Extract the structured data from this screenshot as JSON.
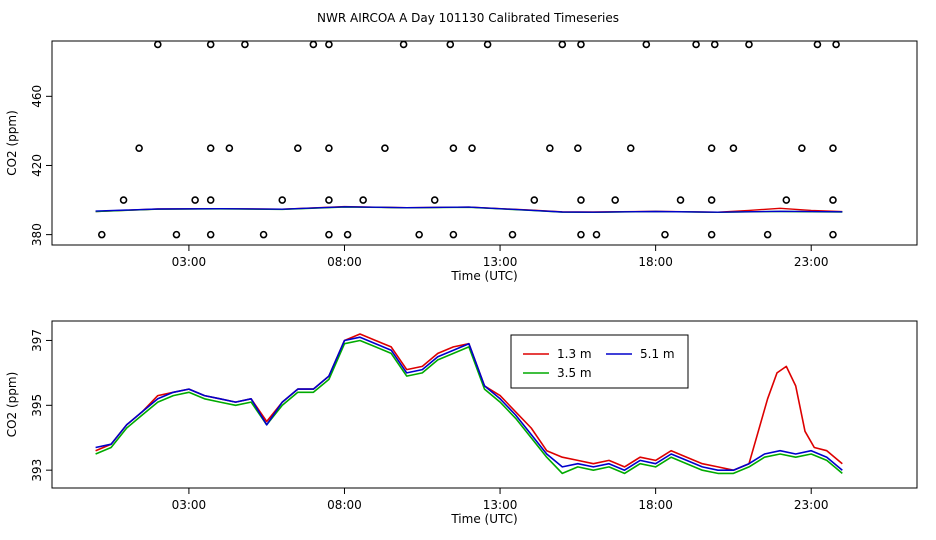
{
  "title": "NWR AIRCOA A  Day 101130  Calibrated Timeseries",
  "chart_data": [
    {
      "type": "scatter",
      "ylabel": "CO2 (ppm)",
      "xlabel": "Time (UTC)",
      "xlim": [
        -1.4,
        26.4
      ],
      "ylim": [
        374,
        492
      ],
      "x_ticks": [
        3,
        8,
        13,
        18,
        23
      ],
      "x_tick_labels": [
        "03:00",
        "08:00",
        "13:00",
        "18:00",
        "23:00"
      ],
      "y_ticks": [
        380,
        420,
        460
      ],
      "y_tick_labels": [
        "380",
        "420",
        "460"
      ],
      "lines": [
        {
          "name": "1.3 m",
          "color": "#dd0000",
          "x": [
            0,
            2,
            4,
            6,
            8,
            10,
            12,
            14,
            15,
            16,
            18,
            20,
            21,
            22,
            23,
            24
          ],
          "y": [
            393.4,
            394.8,
            395.0,
            394.7,
            396.2,
            395.6,
            395.9,
            394.2,
            393.2,
            393.1,
            393.5,
            393.0,
            394.0,
            395.2,
            394.0,
            393.3
          ]
        },
        {
          "name": "3.5 m",
          "color": "#00aa00",
          "x": [
            0,
            2,
            4,
            6,
            8,
            10,
            12,
            14,
            15,
            16,
            18,
            20,
            22,
            24
          ],
          "y": [
            393.4,
            394.7,
            394.9,
            394.6,
            396.0,
            395.5,
            395.8,
            394.0,
            393.0,
            392.9,
            393.3,
            392.9,
            393.4,
            393.1
          ]
        },
        {
          "name": "5.1 m",
          "color": "#0000cc",
          "x": [
            0,
            2,
            4,
            6,
            8,
            10,
            12,
            14,
            15,
            16,
            18,
            20,
            22,
            24
          ],
          "y": [
            393.6,
            394.8,
            395.0,
            394.7,
            396.1,
            395.6,
            395.9,
            394.1,
            393.1,
            393.0,
            393.4,
            393.0,
            393.5,
            393.2
          ]
        }
      ],
      "points": {
        "x": [
          0.2,
          0.9,
          1.4,
          2.0,
          2.6,
          3.2,
          3.7,
          3.7,
          3.7,
          3.7,
          4.3,
          4.8,
          5.4,
          6.0,
          6.5,
          7.0,
          7.5,
          7.5,
          7.5,
          7.5,
          8.1,
          8.6,
          9.3,
          9.9,
          10.4,
          10.9,
          11.4,
          11.5,
          11.5,
          12.1,
          12.6,
          13.4,
          14.1,
          14.6,
          15.0,
          15.5,
          15.6,
          15.6,
          15.6,
          16.1,
          16.7,
          17.2,
          17.7,
          18.3,
          18.8,
          19.3,
          19.8,
          19.8,
          19.8,
          19.9,
          20.5,
          21.0,
          21.6,
          22.2,
          22.7,
          23.2,
          23.7,
          23.7,
          23.7,
          23.8
        ],
        "y": [
          380,
          400,
          430,
          490,
          380,
          400,
          490,
          430,
          400,
          380,
          430,
          490,
          380,
          400,
          430,
          490,
          430,
          400,
          380,
          490,
          380,
          400,
          430,
          490,
          380,
          400,
          490,
          430,
          380,
          430,
          490,
          380,
          400,
          430,
          490,
          430,
          400,
          380,
          490,
          380,
          400,
          430,
          490,
          380,
          400,
          490,
          430,
          400,
          380,
          490,
          430,
          490,
          380,
          400,
          430,
          490,
          430,
          400,
          380,
          490
        ]
      }
    },
    {
      "type": "line",
      "ylabel": "CO2 (ppm)",
      "xlabel": "Time (UTC)",
      "xlim": [
        -1.4,
        26.4
      ],
      "ylim": [
        392.45,
        397.6
      ],
      "x_ticks": [
        3,
        8,
        13,
        18,
        23
      ],
      "x_tick_labels": [
        "03:00",
        "08:00",
        "13:00",
        "18:00",
        "23:00"
      ],
      "y_ticks": [
        393,
        395,
        397
      ],
      "y_tick_labels": [
        "393",
        "395",
        "397"
      ],
      "legend": {
        "position": "top-right",
        "entries": [
          "1.3 m",
          "3.5 m",
          "5.1 m"
        ]
      },
      "series": [
        {
          "name": "1.3 m",
          "color": "#dd0000",
          "x": [
            0,
            0.5,
            1,
            1.5,
            2,
            2.5,
            3,
            3.5,
            4,
            4.5,
            5,
            5.5,
            6,
            6.5,
            7,
            7.5,
            8,
            8.5,
            9,
            9.5,
            10,
            10.5,
            11,
            11.5,
            12,
            12.5,
            13,
            13.5,
            14,
            14.5,
            15,
            15.5,
            16,
            16.5,
            17,
            17.5,
            18,
            18.5,
            19,
            19.5,
            20,
            20.5,
            21,
            21.3,
            21.6,
            21.9,
            22.2,
            22.5,
            22.8,
            23.1,
            23.5,
            24
          ],
          "y": [
            393.6,
            393.8,
            394.4,
            394.8,
            395.3,
            395.4,
            395.5,
            395.3,
            395.2,
            395.1,
            395.2,
            394.5,
            395.1,
            395.5,
            395.5,
            395.9,
            397.0,
            397.2,
            397.0,
            396.8,
            396.1,
            396.2,
            396.6,
            396.8,
            396.9,
            395.6,
            395.3,
            394.8,
            394.3,
            393.6,
            393.4,
            393.3,
            393.2,
            393.3,
            393.1,
            393.4,
            393.3,
            393.6,
            393.4,
            393.2,
            393.1,
            393.0,
            393.2,
            394.2,
            395.2,
            396.0,
            396.2,
            395.6,
            394.2,
            393.7,
            393.6,
            393.2
          ]
        },
        {
          "name": "3.5 m",
          "color": "#00aa00",
          "x": [
            0,
            0.5,
            1,
            1.5,
            2,
            2.5,
            3,
            3.5,
            4,
            4.5,
            5,
            5.5,
            6,
            6.5,
            7,
            7.5,
            8,
            8.5,
            9,
            9.5,
            10,
            10.5,
            11,
            11.5,
            12,
            12.5,
            13,
            13.5,
            14,
            14.5,
            15,
            15.5,
            16,
            16.5,
            17,
            17.5,
            18,
            18.5,
            19,
            19.5,
            20,
            20.5,
            21,
            21.5,
            22,
            22.5,
            23,
            23.5,
            24
          ],
          "y": [
            393.5,
            393.7,
            394.3,
            394.7,
            395.1,
            395.3,
            395.4,
            395.2,
            395.1,
            395.0,
            395.1,
            394.4,
            395.0,
            395.4,
            395.4,
            395.8,
            396.9,
            397.0,
            396.8,
            396.6,
            395.9,
            396.0,
            396.4,
            396.6,
            396.8,
            395.5,
            395.1,
            394.6,
            394.0,
            393.4,
            392.9,
            393.1,
            393.0,
            393.1,
            392.9,
            393.2,
            393.1,
            393.4,
            393.2,
            393.0,
            392.9,
            392.9,
            393.1,
            393.4,
            393.5,
            393.4,
            393.5,
            393.3,
            392.9
          ]
        },
        {
          "name": "5.1 m",
          "color": "#0000cc",
          "x": [
            0,
            0.5,
            1,
            1.5,
            2,
            2.5,
            3,
            3.5,
            4,
            4.5,
            5,
            5.5,
            6,
            6.5,
            7,
            7.5,
            8,
            8.5,
            9,
            9.5,
            10,
            10.5,
            11,
            11.5,
            12,
            12.5,
            13,
            13.5,
            14,
            14.5,
            15,
            15.5,
            16,
            16.5,
            17,
            17.5,
            18,
            18.5,
            19,
            19.5,
            20,
            20.5,
            21,
            21.5,
            22,
            22.5,
            23,
            23.5,
            24
          ],
          "y": [
            393.7,
            393.8,
            394.4,
            394.8,
            395.2,
            395.4,
            395.5,
            395.3,
            395.2,
            395.1,
            395.2,
            394.4,
            395.1,
            395.5,
            395.5,
            395.9,
            397.0,
            397.1,
            396.9,
            396.7,
            396.0,
            396.1,
            396.5,
            396.7,
            396.9,
            395.6,
            395.2,
            394.7,
            394.1,
            393.5,
            393.1,
            393.2,
            393.1,
            393.2,
            393.0,
            393.3,
            393.2,
            393.5,
            393.3,
            393.1,
            393.0,
            393.0,
            393.2,
            393.5,
            393.6,
            393.5,
            393.6,
            393.4,
            393.0
          ]
        }
      ]
    }
  ]
}
